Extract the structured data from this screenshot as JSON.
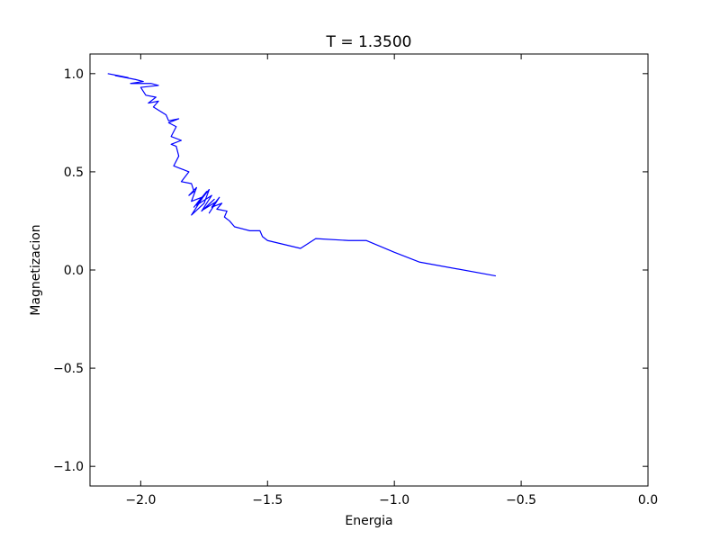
{
  "chart_data": {
    "type": "line",
    "title": "T = 1.3500",
    "xlabel": "Energia",
    "ylabel": "Magnetizacion",
    "xlim": [
      -2.2,
      0.0
    ],
    "ylim": [
      -1.1,
      1.1
    ],
    "grid": false,
    "line_color": "#0000ff",
    "xticks": [
      -2.0,
      -1.5,
      -1.0,
      -0.5,
      0.0
    ],
    "xtick_labels": [
      "−2.0",
      "−1.5",
      "−1.0",
      "−0.5",
      "0.0"
    ],
    "yticks": [
      1.0,
      0.5,
      0.0,
      -0.5,
      -1.0
    ],
    "ytick_labels": [
      "1.0",
      "0.5",
      "0.0",
      "−0.5",
      "−1.0"
    ],
    "series": [
      {
        "x": [
          -2.13,
          -2.09,
          -2.05,
          -2.1,
          -2.02,
          -1.99,
          -2.04,
          -1.96,
          -1.93,
          -2.0,
          -1.98,
          -1.94,
          -1.97,
          -1.93,
          -1.95,
          -1.9,
          -1.89,
          -1.85,
          -1.89,
          -1.86,
          -1.88,
          -1.84,
          -1.88,
          -1.86,
          -1.85,
          -1.87,
          -1.85,
          -1.83,
          -1.81,
          -1.84,
          -1.8,
          -1.79,
          -1.81,
          -1.78,
          -1.8,
          -1.76,
          -1.79,
          -1.74,
          -1.8,
          -1.75,
          -1.73,
          -1.78,
          -1.72,
          -1.76,
          -1.71,
          -1.75,
          -1.7,
          -1.73,
          -1.69,
          -1.72,
          -1.68,
          -1.7,
          -1.66,
          -1.67,
          -1.65,
          -1.63,
          -1.57,
          -1.53,
          -1.52,
          -1.5,
          -1.37,
          -1.31,
          -1.18,
          -1.11,
          -1.0,
          -0.9,
          -0.6
        ],
        "y": [
          1.0,
          0.99,
          0.98,
          0.99,
          0.97,
          0.96,
          0.95,
          0.95,
          0.94,
          0.93,
          0.89,
          0.88,
          0.85,
          0.86,
          0.83,
          0.79,
          0.76,
          0.77,
          0.75,
          0.73,
          0.68,
          0.66,
          0.64,
          0.63,
          0.58,
          0.53,
          0.52,
          0.51,
          0.5,
          0.45,
          0.44,
          0.4,
          0.38,
          0.42,
          0.35,
          0.37,
          0.32,
          0.4,
          0.28,
          0.34,
          0.41,
          0.33,
          0.38,
          0.3,
          0.36,
          0.31,
          0.35,
          0.29,
          0.37,
          0.32,
          0.34,
          0.31,
          0.3,
          0.27,
          0.25,
          0.22,
          0.2,
          0.2,
          0.17,
          0.15,
          0.11,
          0.16,
          0.15,
          0.15,
          0.09,
          0.04,
          -0.03
        ]
      }
    ]
  }
}
